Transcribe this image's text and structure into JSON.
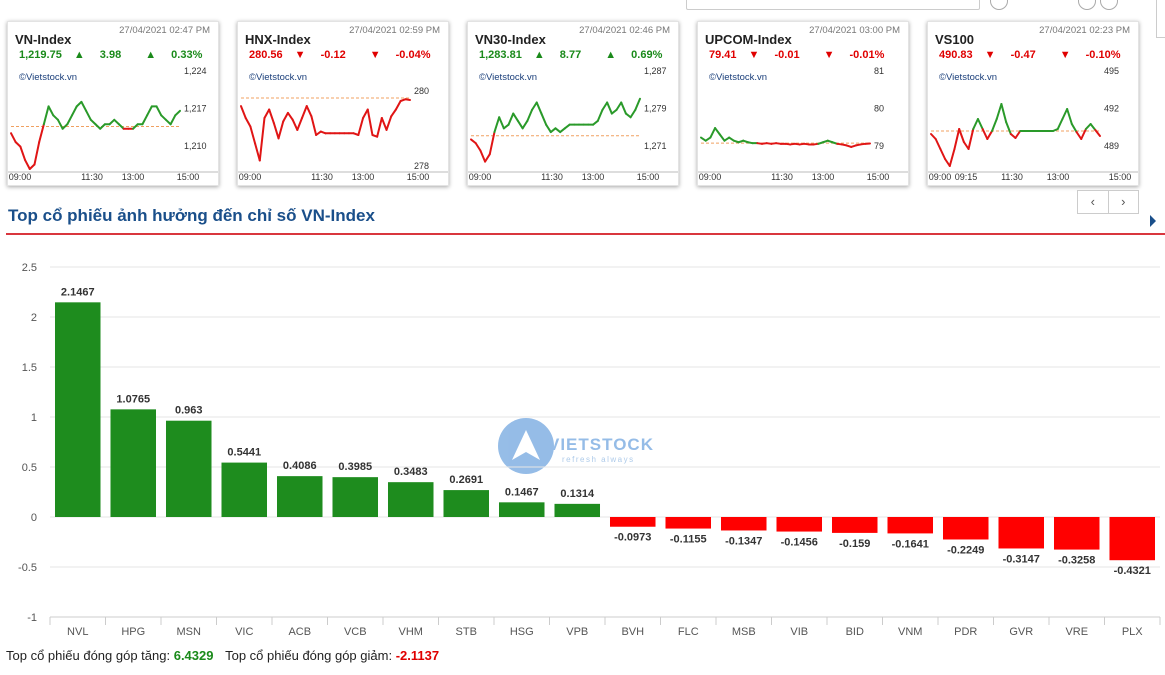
{
  "mini_charts": [
    {
      "name": "VN-Index",
      "timestamp": "27/04/2021 02:47 PM",
      "value": "1,219.75",
      "change": "3.98",
      "pct": "0.33%",
      "dir": "up",
      "source": "©Vietstock.vn",
      "y_ticks": [
        "1,224",
        "1,217",
        "1,210"
      ],
      "x_ticks": [
        "09:00",
        "11:30",
        "13:00",
        "15:00"
      ],
      "ref": 1216.5,
      "ymin": 1207,
      "ymax": 1226,
      "series": [
        1215,
        1213,
        1212,
        1209,
        1207,
        1208,
        1213,
        1217,
        1221,
        1219,
        1218,
        1216,
        1217,
        1219,
        1221,
        1222,
        1220,
        1218,
        1217,
        1216,
        1217,
        1217,
        1218,
        1217,
        1216,
        1216,
        1216,
        1217,
        1217,
        1219,
        1221,
        1221,
        1219,
        1218,
        1217,
        1219,
        1220
      ]
    },
    {
      "name": "HNX-Index",
      "timestamp": "27/04/2021 02:59 PM",
      "value": "280.56",
      "change": "-0.12",
      "pct": "-0.04%",
      "dir": "down",
      "source": "©Vietstock.vn",
      "y_ticks": [
        "280",
        "278"
      ],
      "x_ticks": [
        "09:00",
        "11:30",
        "13:00",
        "15:00"
      ],
      "ref": 280.68,
      "ymin": 276.5,
      "ymax": 281.5,
      "series": [
        280.2,
        279.5,
        279.0,
        278.0,
        277.0,
        279.5,
        280.0,
        279.2,
        278.3,
        279.3,
        279.8,
        279.4,
        278.8,
        279.5,
        280.2,
        279.6,
        278.5,
        278.7,
        278.6,
        278.6,
        278.6,
        278.6,
        278.6,
        278.6,
        278.6,
        278.5,
        279.5,
        280.0,
        278.5,
        278.4,
        279.5,
        278.8,
        279.6,
        280.0,
        280.5,
        280.6,
        280.56
      ]
    },
    {
      "name": "VN30-Index",
      "timestamp": "27/04/2021 02:46 PM",
      "value": "1,283.81",
      "change": "8.77",
      "pct": "0.69%",
      "dir": "up",
      "source": "©Vietstock.vn",
      "y_ticks": [
        "1,287",
        "1,279",
        "1,271"
      ],
      "x_ticks": [
        "09:00",
        "11:30",
        "13:00",
        "15:00"
      ],
      "ref": 1275.0,
      "ymin": 1266,
      "ymax": 1289,
      "series": [
        1274,
        1273,
        1271,
        1268,
        1270,
        1276,
        1280,
        1277,
        1278,
        1281,
        1279,
        1277,
        1279,
        1282,
        1284,
        1281,
        1278,
        1276,
        1277,
        1276,
        1277,
        1278,
        1278,
        1278,
        1278,
        1278,
        1278,
        1279,
        1282,
        1284,
        1281,
        1282,
        1284,
        1281,
        1280,
        1282,
        1285
      ]
    },
    {
      "name": "UPCOM-Index",
      "timestamp": "27/04/2021 03:00 PM",
      "value": "79.41",
      "change": "-0.01",
      "pct": "-0.01%",
      "dir": "down",
      "source": "©Vietstock.vn",
      "y_ticks": [
        "81",
        "80",
        "79"
      ],
      "x_ticks": [
        "09:00",
        "11:30",
        "13:00",
        "15:00"
      ],
      "ref": 79.42,
      "ymin": 78.6,
      "ymax": 81.3,
      "series": [
        79.6,
        79.5,
        79.6,
        79.9,
        79.7,
        79.5,
        79.6,
        79.5,
        79.45,
        79.5,
        79.45,
        79.42,
        79.42,
        79.4,
        79.42,
        79.4,
        79.42,
        79.4,
        79.4,
        79.38,
        79.4,
        79.38,
        79.4,
        79.38,
        79.38,
        79.4,
        79.45,
        79.5,
        79.45,
        79.4,
        79.38,
        79.35,
        79.3,
        79.35,
        79.38,
        79.4,
        79.41
      ]
    },
    {
      "name": "VS100",
      "timestamp": "27/04/2021 02:23 PM",
      "value": "490.83",
      "change": "-0.47",
      "pct": "-0.10%",
      "dir": "down",
      "source": "©Vietstock.vn",
      "y_ticks": [
        "495",
        "492",
        "489"
      ],
      "x_ticks": [
        "09:00",
        "09:15",
        "11:30",
        "13:00",
        "15:00"
      ],
      "ref": 491.3,
      "ymin": 487.5,
      "ymax": 496,
      "series": [
        491.0,
        490.5,
        489.5,
        488.5,
        487.8,
        489.5,
        491.5,
        490.2,
        489.5,
        491.5,
        492.5,
        491.5,
        490.5,
        491.3,
        492.5,
        494.0,
        492.2,
        491.0,
        490.6,
        491.3,
        491.3,
        491.3,
        491.3,
        491.3,
        491.3,
        491.3,
        491.3,
        491.5,
        492.5,
        493.5,
        492.0,
        491.2,
        490.5,
        491.5,
        492.0,
        491.4,
        490.8
      ]
    }
  ],
  "section_title": "Top cổ phiếu ảnh hưởng đến chỉ số VN-Index",
  "nav": {
    "prev": "‹",
    "next": "›"
  },
  "chart_data": {
    "type": "bar",
    "title": "Top cổ phiếu ảnh hưởng đến chỉ số VN-Index",
    "categories": [
      "NVL",
      "HPG",
      "MSN",
      "VIC",
      "ACB",
      "VCB",
      "VHM",
      "STB",
      "HSG",
      "VPB",
      "BVH",
      "FLC",
      "MSB",
      "VIB",
      "BID",
      "VNM",
      "PDR",
      "GVR",
      "VRE",
      "PLX"
    ],
    "values": [
      2.1467,
      1.0765,
      0.963,
      0.5441,
      0.4086,
      0.3985,
      0.3483,
      0.2691,
      0.1467,
      0.1314,
      -0.0973,
      -0.1155,
      -0.1347,
      -0.1456,
      -0.159,
      -0.1641,
      -0.2249,
      -0.3147,
      -0.3258,
      -0.4321
    ],
    "labels": [
      "2.1467",
      "1.0765",
      "0.963",
      "0.5441",
      "0.4086",
      "0.3985",
      "0.3483",
      "0.2691",
      "0.1467",
      "0.1314",
      "-0.0973",
      "-0.1155",
      "-0.1347",
      "-0.1456",
      "-0.159",
      "-0.1641",
      "-0.2249",
      "-0.3147",
      "-0.3258",
      "-0.4321"
    ],
    "ylim": [
      -1,
      2.5
    ],
    "y_ticks": [
      "2.5",
      "2",
      "1.5",
      "1",
      "0.5",
      "0",
      "-0.5",
      "-1"
    ],
    "grid": true,
    "colors": {
      "positive": "#1e8c1e",
      "negative": "#ff0000"
    },
    "watermark": {
      "brand": "VIETSTOCK",
      "tagline": "refresh always"
    }
  },
  "footer": {
    "gain_label": "Top cổ phiếu đóng góp tăng:",
    "gain_value": "6.4329",
    "loss_label": "Top cổ phiếu đóng góp giảm:",
    "loss_value": "-2.1137"
  }
}
